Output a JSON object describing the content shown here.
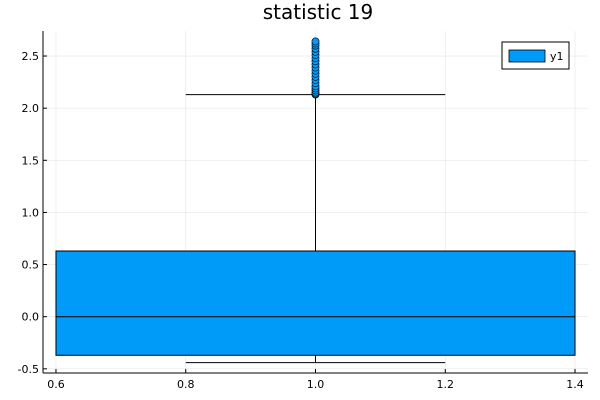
{
  "chart_data": {
    "type": "box",
    "title": "statistic 19",
    "xlabel": "",
    "ylabel": "",
    "xlim": [
      0.58,
      1.42
    ],
    "ylim": [
      -0.54,
      2.74
    ],
    "xticks": [
      0.6,
      0.8,
      1.0,
      1.2,
      1.4
    ],
    "xtick_labels": [
      "0.6",
      "0.8",
      "1.0",
      "1.2",
      "1.4"
    ],
    "yticks": [
      -0.5,
      0.0,
      0.5,
      1.0,
      1.5,
      2.0,
      2.5
    ],
    "ytick_labels": [
      "-0.5",
      "0.0",
      "0.5",
      "1.0",
      "1.5",
      "2.0",
      "2.5"
    ],
    "grid": true,
    "legend_position": "top-right",
    "color": "#009af9",
    "series": [
      {
        "name": "y1",
        "x": 1.0,
        "box_x_range": [
          0.6,
          1.4
        ],
        "whisker_cap_x_range": [
          0.8,
          1.2
        ],
        "q1": -0.37,
        "median": 0.0,
        "q3": 0.63,
        "whisker_low": -0.44,
        "whisker_high": 2.13,
        "outliers": [
          2.13,
          2.14,
          2.15,
          2.17,
          2.19,
          2.21,
          2.24,
          2.27,
          2.3,
          2.33,
          2.36,
          2.39,
          2.42,
          2.45,
          2.48,
          2.51,
          2.54,
          2.57,
          2.6,
          2.62,
          2.64
        ]
      }
    ]
  }
}
